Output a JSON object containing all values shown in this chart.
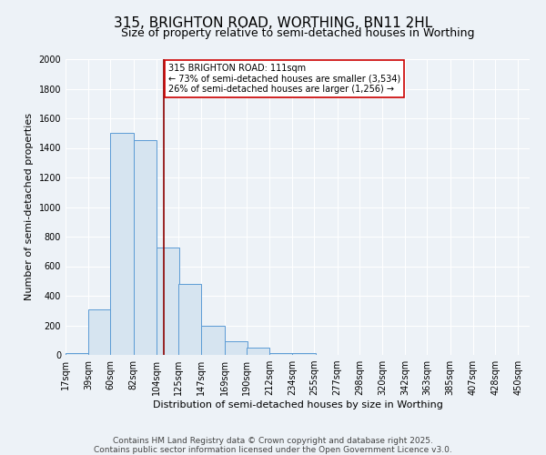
{
  "title": "315, BRIGHTON ROAD, WORTHING, BN11 2HL",
  "subtitle": "Size of property relative to semi-detached houses in Worthing",
  "xlabel": "Distribution of semi-detached houses by size in Worthing",
  "ylabel": "Number of semi-detached properties",
  "categories": [
    "17sqm",
    "39sqm",
    "60sqm",
    "82sqm",
    "104sqm",
    "125sqm",
    "147sqm",
    "169sqm",
    "190sqm",
    "212sqm",
    "234sqm",
    "255sqm",
    "277sqm",
    "298sqm",
    "320sqm",
    "342sqm",
    "363sqm",
    "385sqm",
    "407sqm",
    "428sqm",
    "450sqm"
  ],
  "values": [
    15,
    310,
    1500,
    1450,
    725,
    480,
    200,
    90,
    50,
    15,
    15,
    0,
    0,
    0,
    0,
    0,
    0,
    0,
    0,
    0,
    0
  ],
  "bar_color": "#d6e4f0",
  "bar_edge_color": "#5b9bd5",
  "property_line_x": 111,
  "property_line_color": "#8b0000",
  "annotation_text": "315 BRIGHTON ROAD: 111sqm\n← 73% of semi-detached houses are smaller (3,534)\n26% of semi-detached houses are larger (1,256) →",
  "annotation_box_color": "white",
  "annotation_box_edge": "#cc0000",
  "ylim": [
    0,
    2000
  ],
  "bin_width": 22,
  "footer": "Contains HM Land Registry data © Crown copyright and database right 2025.\nContains public sector information licensed under the Open Government Licence v3.0.",
  "background_color": "#edf2f7",
  "plot_bg_color": "#edf2f7",
  "grid_color": "#ffffff",
  "title_fontsize": 11,
  "subtitle_fontsize": 9,
  "axis_label_fontsize": 8,
  "tick_fontsize": 7,
  "footer_fontsize": 6.5,
  "annotation_fontsize": 7
}
